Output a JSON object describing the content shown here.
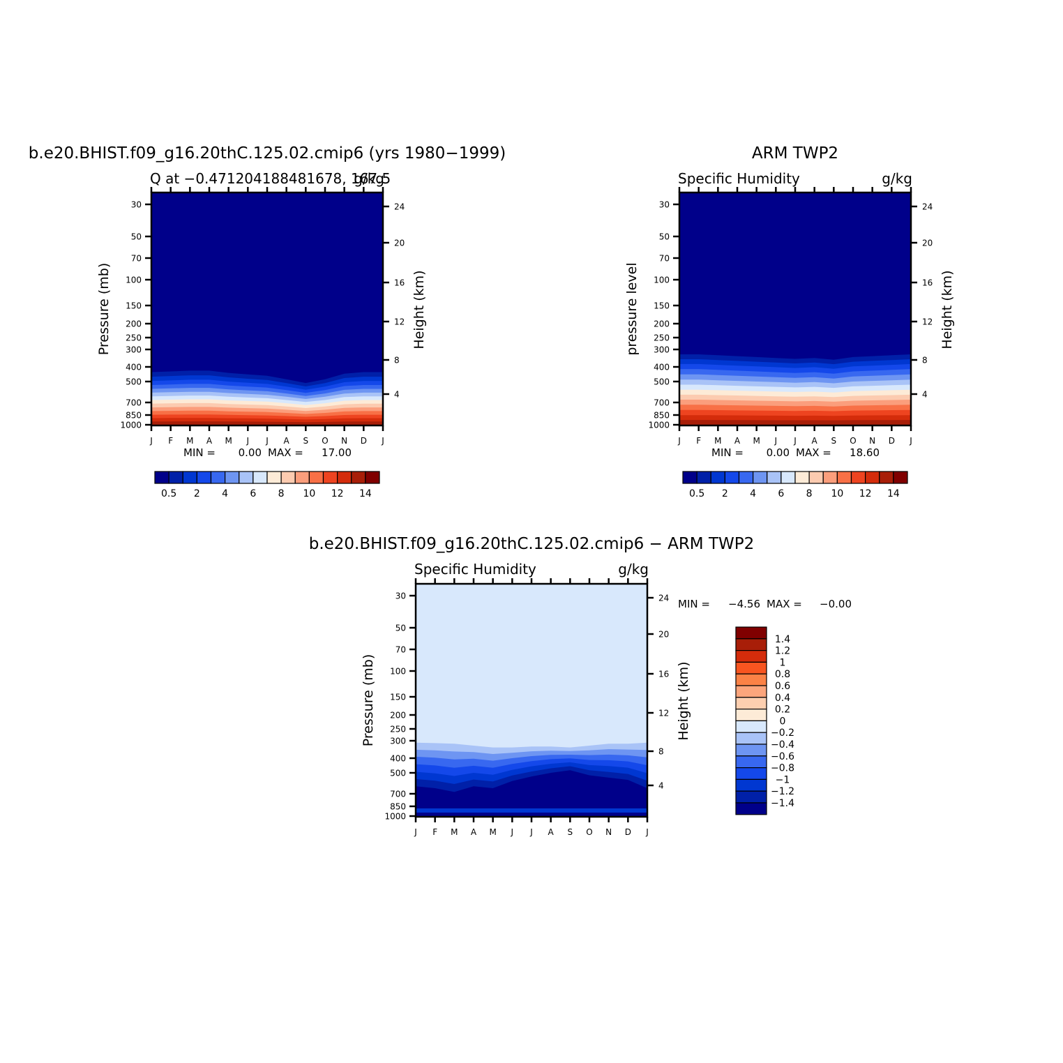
{
  "chart_data": [
    {
      "type": "heatmap",
      "title": "b.e20.BHIST.f09_g16.20thC.125.02.cmip6 (yrs 1980−1999)",
      "subtitle_left": "Q at −0.471204188481678, 167.5",
      "subtitle_right": "g/kg",
      "ylabel": "Pressure (mb)",
      "ylabel_right": "Height (km)",
      "yticks": [
        "30",
        "50",
        "70",
        "100",
        "150",
        "200",
        "250",
        "300",
        "400",
        "500",
        "700",
        "850",
        "1000"
      ],
      "yticks_right": [
        "24",
        "20",
        "16",
        "12",
        "8",
        "4"
      ],
      "months": [
        "J",
        "F",
        "M",
        "A",
        "M",
        "J",
        "J",
        "A",
        "S",
        "O",
        "N",
        "D",
        "J"
      ],
      "min_label": "MIN =",
      "min_value": "0.00",
      "max_label": "MAX =",
      "max_value": "17.00",
      "colorbar_labels": [
        "0.5",
        "2",
        "4",
        "6",
        "8",
        "10",
        "12",
        "14"
      ],
      "colors": [
        "#00008a",
        "#0020a8",
        "#0037d1",
        "#1448ea",
        "#3868f0",
        "#6e95f2",
        "#a9c3f7",
        "#d8e8fc",
        "#fdebd7",
        "#fccbb0",
        "#fb9e7c",
        "#f87046",
        "#ee4420",
        "#d42c0b",
        "#a81e08",
        "#800000"
      ],
      "dry_level_by_month_mb": [
        400,
        395,
        390,
        390,
        405,
        415,
        425,
        450,
        480,
        450,
        410,
        400,
        400
      ],
      "surface_max_g_per_kg": 17.0
    },
    {
      "type": "heatmap",
      "title": "ARM TWP2",
      "subtitle_left": "Specific Humidity",
      "subtitle_right": "g/kg",
      "ylabel": "pressure level",
      "ylabel_right": "Height (km)",
      "yticks": [
        "30",
        "50",
        "70",
        "100",
        "150",
        "200",
        "250",
        "300",
        "400",
        "500",
        "700",
        "850",
        "1000"
      ],
      "yticks_right": [
        "24",
        "20",
        "16",
        "12",
        "8",
        "4"
      ],
      "months": [
        "J",
        "F",
        "M",
        "A",
        "M",
        "J",
        "J",
        "A",
        "S",
        "O",
        "N",
        "D",
        "J"
      ],
      "min_label": "MIN =",
      "min_value": "0.00",
      "max_label": "MAX =",
      "max_value": "18.60",
      "colorbar_labels": [
        "0.5",
        "2",
        "4",
        "6",
        "8",
        "10",
        "12",
        "14"
      ],
      "colors": [
        "#00008a",
        "#0020a8",
        "#0037d1",
        "#1448ea",
        "#3868f0",
        "#6e95f2",
        "#a9c3f7",
        "#d8e8fc",
        "#fdebd7",
        "#fccbb0",
        "#fb9e7c",
        "#f87046",
        "#ee4420",
        "#d42c0b",
        "#a81e08",
        "#800000"
      ],
      "dry_level_by_month_mb": [
        300,
        300,
        305,
        310,
        315,
        320,
        325,
        320,
        330,
        315,
        310,
        305,
        300
      ],
      "surface_max_g_per_kg": 18.6
    },
    {
      "type": "heatmap",
      "title": "b.e20.BHIST.f09_g16.20thC.125.02.cmip6 − ARM TWP2",
      "subtitle_left": "Specific Humidity",
      "subtitle_right": "g/kg",
      "ylabel": "Pressure (mb)",
      "ylabel_right": "Height (km)",
      "yticks": [
        "30",
        "50",
        "70",
        "100",
        "150",
        "200",
        "250",
        "300",
        "400",
        "500",
        "700",
        "850",
        "1000"
      ],
      "yticks_right": [
        "24",
        "20",
        "16",
        "12",
        "8",
        "4"
      ],
      "months": [
        "J",
        "F",
        "M",
        "A",
        "M",
        "J",
        "J",
        "A",
        "S",
        "O",
        "N",
        "D",
        "J"
      ],
      "min_label": "MIN =",
      "min_value": "−4.56",
      "max_label": "MAX =",
      "max_value": "−0.00",
      "colorbar_labels": [
        "1.4",
        "1.2",
        "1",
        "0.8",
        "0.6",
        "0.4",
        "0.2",
        "0",
        "−0.2",
        "−0.4",
        "−0.6",
        "−0.8",
        "−1",
        "−1.2",
        "−1.4"
      ],
      "colors": [
        "#800000",
        "#a81e08",
        "#d42c0b",
        "#f85520",
        "#fb8246",
        "#fca57c",
        "#fdcfb0",
        "#fdebd7",
        "#d8e8fc",
        "#a9c3f7",
        "#6e95f2",
        "#3868f0",
        "#1448ea",
        "#0037d1",
        "#0020a8",
        "#00008a"
      ],
      "diff_top_level_by_month_mb": [
        310,
        312,
        315,
        325,
        335,
        335,
        330,
        330,
        335,
        325,
        315,
        315,
        310
      ],
      "diff_deep_level_by_month_mb": [
        620,
        640,
        680,
        620,
        640,
        570,
        530,
        500,
        480,
        520,
        540,
        560,
        640
      ]
    }
  ]
}
